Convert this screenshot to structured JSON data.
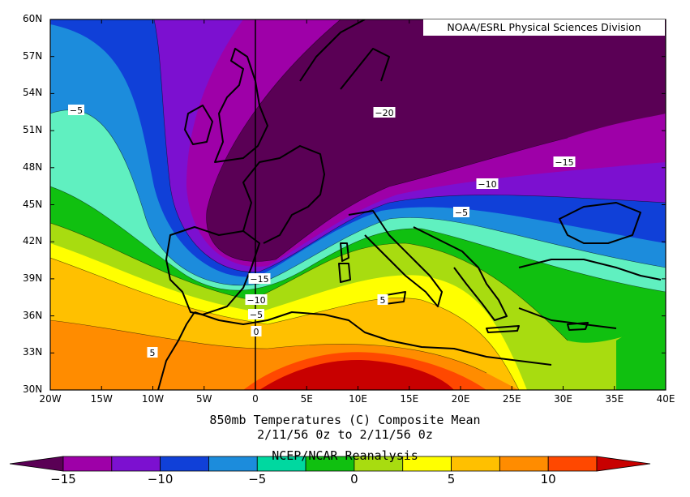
{
  "credit": "NOAA/ESRL Physical Sciences Division",
  "title_line1": "850mb Temperatures (C)   Composite Mean",
  "title_line2": "2/11/56 0z  to 2/11/56 0z",
  "title_line3": "NCEP/NCAR Reanalysis",
  "lat_labels": [
    "60N",
    "57N",
    "54N",
    "51N",
    "48N",
    "45N",
    "42N",
    "39N",
    "36N",
    "33N",
    "30N"
  ],
  "lon_labels": [
    "20W",
    "15W",
    "10W",
    "5W",
    "0",
    "5E",
    "10E",
    "15E",
    "20E",
    "25E",
    "30E",
    "35E",
    "40E"
  ],
  "contour_labels": [
    "-5",
    "-20",
    "-15",
    "-10",
    "-5",
    "-15",
    "-10",
    "-5",
    "0",
    "5",
    "5"
  ],
  "colorbar_labels": [
    "-15",
    "-10",
    "-5",
    "0",
    "5",
    "10"
  ],
  "colors": {
    "minus_20_below": "#5a0055",
    "minus_17_5": "#9e00a8",
    "minus_15": "#7c10d0",
    "minus_12_5": "#1040d8",
    "minus_10": "#1c8cdc",
    "minus_7_5": "#00d8a0",
    "minus_5": "#60f0c0",
    "minus_2_5": "#10c010",
    "zero": "#a8dc10",
    "plus_2_5": "#ffff00",
    "plus_5": "#ffc000",
    "plus_7_5": "#ff8c00",
    "plus_10": "#ff4800",
    "plus_12_5": "#c80000"
  }
}
